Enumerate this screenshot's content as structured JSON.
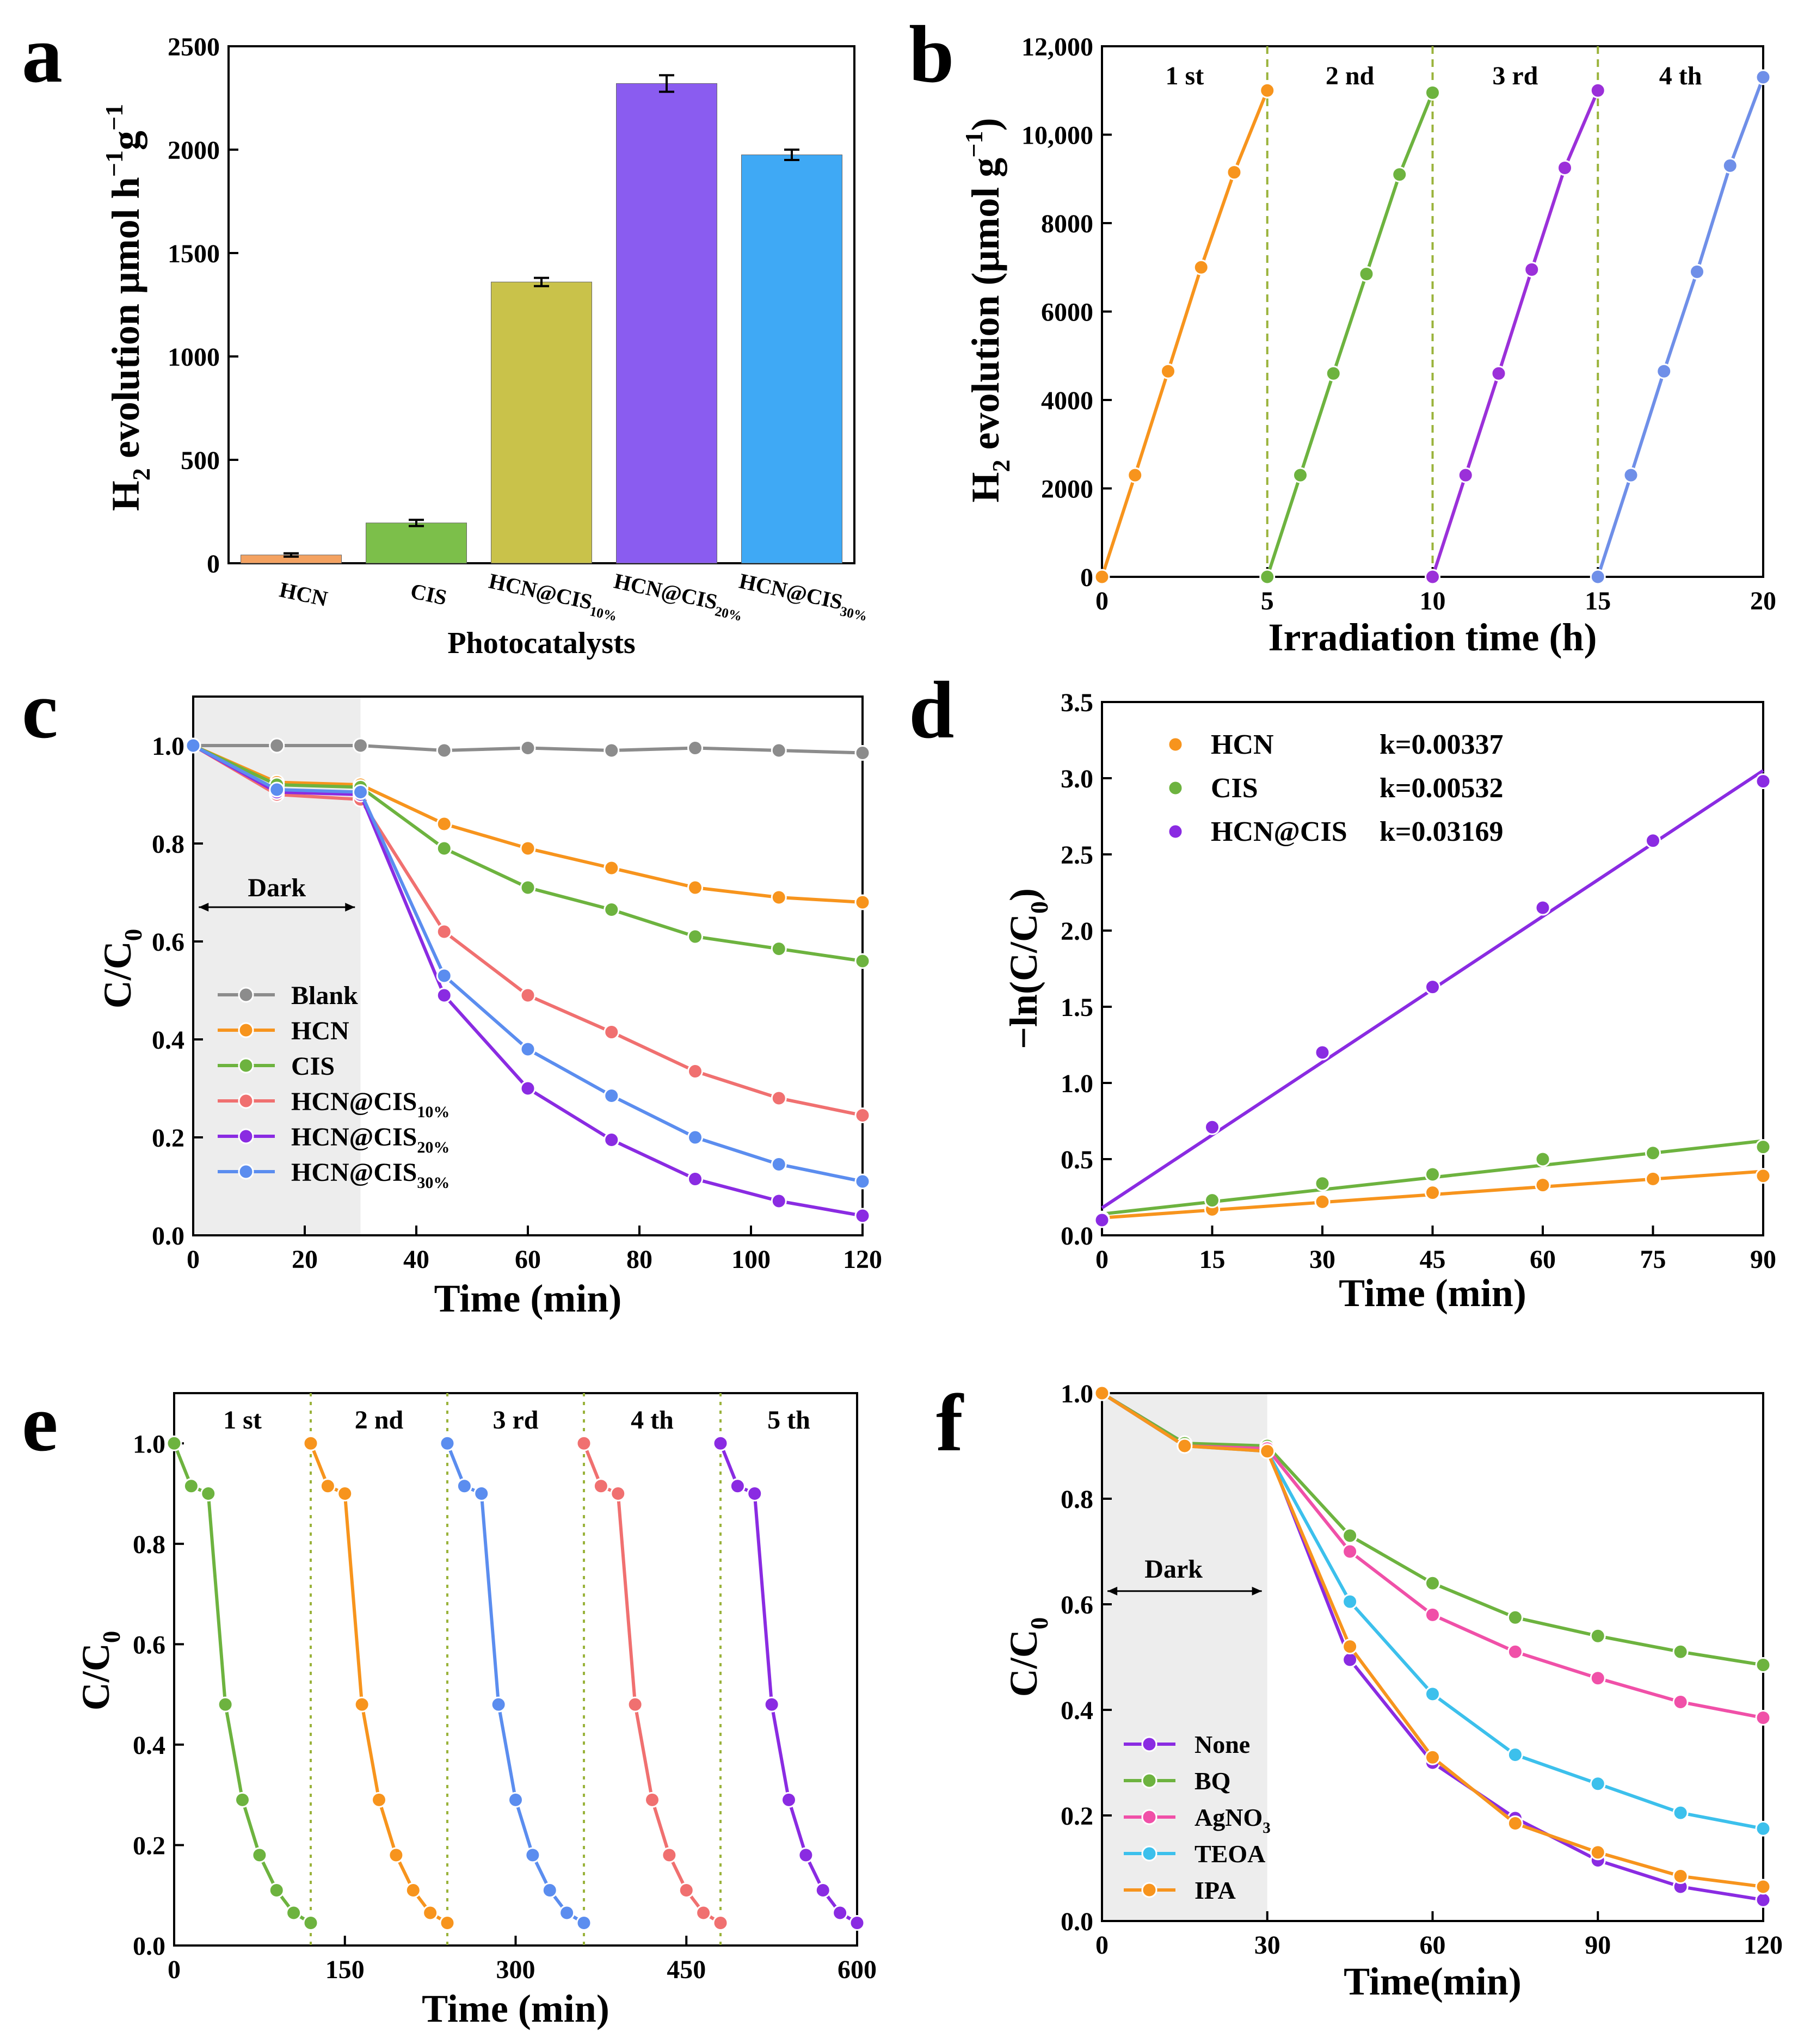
{
  "chart_data": [
    {
      "panel": "a",
      "type": "bar",
      "panel_label": "a",
      "ylabel_main": "H",
      "ylabel_sub": "2",
      "ylabel_rest": " evolution  μmol h",
      "ylabel_sup1": "−1",
      "ylabel_g": "g",
      "ylabel_sup2": "−1",
      "xlabel": "Photocatalysts",
      "ylim": [
        0,
        2500
      ],
      "yticks": [
        0,
        500,
        1000,
        1500,
        2000,
        2500
      ],
      "categories": [
        {
          "base": "HCN",
          "sub": ""
        },
        {
          "base": "CIS",
          "sub": ""
        },
        {
          "base": "HCN@CIS",
          "sub": "10%"
        },
        {
          "base": "HCN@CIS",
          "sub": "20%"
        },
        {
          "base": "HCN@CIS",
          "sub": "30%"
        }
      ],
      "values": [
        40,
        195,
        1360,
        2320,
        1975
      ],
      "errors": [
        8,
        15,
        20,
        40,
        25
      ],
      "colors": [
        "#F4A261",
        "#7CBF4A",
        "#C9C24A",
        "#8A5CF0",
        "#3FA9F5"
      ]
    },
    {
      "panel": "b",
      "type": "line",
      "panel_label": "b",
      "ylabel_main": "H",
      "ylabel_sub": "2",
      "ylabel_rest": " evolution (μmol g",
      "ylabel_sup": "−1",
      "ylabel_end": ")",
      "xlabel": "Irradiation time (h)",
      "xlim": [
        0,
        20
      ],
      "ylim": [
        0,
        12000
      ],
      "xticks": [
        0,
        5,
        10,
        15,
        20
      ],
      "yticks": [
        0,
        2000,
        4000,
        6000,
        8000,
        10000,
        12000
      ],
      "ytick_labels": [
        "0",
        "2000",
        "4000",
        "6000",
        "8000",
        "10,000",
        "12,000"
      ],
      "cycle_labels": [
        "1 st",
        "2 nd",
        "3 rd",
        "4 th"
      ],
      "dividers": [
        5,
        10,
        15
      ],
      "series": [
        {
          "name": "1 st",
          "color": "#F7941D",
          "x": [
            0,
            1,
            2,
            3,
            4,
            5
          ],
          "y": [
            0,
            2300,
            4650,
            7000,
            9150,
            11000
          ]
        },
        {
          "name": "2 nd",
          "color": "#6DB33F",
          "x": [
            5,
            6,
            7,
            8,
            9,
            10
          ],
          "y": [
            0,
            2300,
            4600,
            6850,
            9100,
            10950
          ]
        },
        {
          "name": "3 rd",
          "color": "#9B30D9",
          "x": [
            10,
            11,
            12,
            13,
            14,
            15
          ],
          "y": [
            0,
            2300,
            4600,
            6950,
            9250,
            11000
          ]
        },
        {
          "name": "4 th",
          "color": "#6F8FE8",
          "x": [
            15,
            16,
            17,
            18,
            19,
            20
          ],
          "y": [
            0,
            2300,
            4650,
            6900,
            9300,
            11300
          ]
        }
      ]
    },
    {
      "panel": "c",
      "type": "line",
      "panel_label": "c",
      "ylabel": "C/C",
      "ylabel_sub": "0",
      "xlabel": "Time (min)",
      "xlim": [
        0,
        120
      ],
      "ylim": [
        0,
        1.1
      ],
      "xticks": [
        0,
        20,
        40,
        60,
        80,
        100,
        120
      ],
      "yticks": [
        0.0,
        0.2,
        0.4,
        0.6,
        0.8,
        1.0
      ],
      "ytick_labels": [
        "0.0",
        "0.2",
        "0.4",
        "0.6",
        "0.8",
        "1.0"
      ],
      "dark_label": "Dark",
      "dark_range": [
        0,
        30
      ],
      "x": [
        0,
        15,
        30,
        45,
        60,
        75,
        90,
        105,
        120
      ],
      "series": [
        {
          "name": "Blank",
          "sub": "",
          "color": "#8C8C8C",
          "y": [
            1.0,
            1.0,
            1.0,
            0.99,
            0.995,
            0.99,
            0.995,
            0.99,
            0.985
          ]
        },
        {
          "name": "HCN",
          "sub": "",
          "color": "#F7941D",
          "y": [
            1.0,
            0.925,
            0.92,
            0.84,
            0.79,
            0.75,
            0.71,
            0.69,
            0.68
          ]
        },
        {
          "name": "CIS",
          "sub": "",
          "color": "#6DB33F",
          "y": [
            1.0,
            0.92,
            0.915,
            0.79,
            0.71,
            0.665,
            0.61,
            0.585,
            0.56
          ]
        },
        {
          "name": "HCN@CIS",
          "sub": "10%",
          "color": "#F07070",
          "y": [
            1.0,
            0.9,
            0.89,
            0.62,
            0.49,
            0.415,
            0.335,
            0.28,
            0.245
          ]
        },
        {
          "name": "HCN@CIS",
          "sub": "20%",
          "color": "#8A2BE2",
          "y": [
            1.0,
            0.905,
            0.9,
            0.49,
            0.3,
            0.195,
            0.115,
            0.07,
            0.04
          ]
        },
        {
          "name": "HCN@CIS",
          "sub": "30%",
          "color": "#5B8DEF",
          "y": [
            1.0,
            0.91,
            0.905,
            0.53,
            0.38,
            0.285,
            0.2,
            0.145,
            0.11
          ]
        }
      ]
    },
    {
      "panel": "d",
      "type": "scatter",
      "panel_label": "d",
      "ylabel": "−ln(C/C",
      "ylabel_sub": "0",
      "ylabel_end": ")",
      "xlabel": "Time (min)",
      "xlim": [
        0,
        90
      ],
      "ylim": [
        0,
        3.5
      ],
      "xticks": [
        0,
        15,
        30,
        45,
        60,
        75,
        90
      ],
      "yticks": [
        0.0,
        0.5,
        1.0,
        1.5,
        2.0,
        2.5,
        3.0,
        3.5
      ],
      "ytick_labels": [
        "0.0",
        "0.5",
        "1.0",
        "1.5",
        "2.0",
        "2.5",
        "3.0",
        "3.5"
      ],
      "x": [
        0,
        15,
        30,
        45,
        60,
        75,
        90
      ],
      "series": [
        {
          "name": "HCN",
          "k_label": "k=0.00337",
          "color": "#F7941D",
          "y": [
            0.1,
            0.17,
            0.22,
            0.28,
            0.33,
            0.37,
            0.39
          ],
          "fit": [
            0.115,
            0.42
          ]
        },
        {
          "name": "CIS",
          "k_label": "k=0.00532",
          "color": "#6DB33F",
          "y": [
            0.11,
            0.23,
            0.34,
            0.4,
            0.5,
            0.54,
            0.58
          ],
          "fit": [
            0.14,
            0.62
          ]
        },
        {
          "name": "HCN@CIS",
          "k_label": "k=0.03169",
          "color": "#8A2BE2",
          "y": [
            0.1,
            0.71,
            1.2,
            1.63,
            2.15,
            2.59,
            2.98
          ],
          "fit": [
            0.18,
            3.05
          ]
        }
      ]
    },
    {
      "panel": "e",
      "type": "line",
      "panel_label": "e",
      "ylabel": "C/C",
      "ylabel_sub": "0",
      "xlabel": "Time (min)",
      "xlim": [
        0,
        600
      ],
      "ylim": [
        0,
        1.1
      ],
      "xticks": [
        0,
        150,
        300,
        450,
        600
      ],
      "yticks": [
        0.0,
        0.2,
        0.4,
        0.6,
        0.8,
        1.0
      ],
      "ytick_labels": [
        "0.0",
        "0.2",
        "0.4",
        "0.6",
        "0.8",
        "1.0"
      ],
      "cycle_labels": [
        "1 st",
        "2 nd",
        "3 rd",
        "4 th",
        "5 th"
      ],
      "dividers": [
        120,
        240,
        360,
        480
      ],
      "cycle_y": [
        1.0,
        0.915,
        0.9,
        0.48,
        0.29,
        0.18,
        0.11,
        0.065,
        0.045
      ],
      "cycle_colors": [
        "#6DB33F",
        "#F7941D",
        "#5B8DEF",
        "#F07070",
        "#8A2BE2"
      ]
    },
    {
      "panel": "f",
      "type": "line",
      "panel_label": "f",
      "ylabel": "C/C",
      "ylabel_sub": "0",
      "xlabel": "Time(min)",
      "xlim": [
        0,
        120
      ],
      "ylim": [
        0,
        1.0
      ],
      "xticks": [
        0,
        30,
        60,
        90,
        120
      ],
      "yticks": [
        0.0,
        0.2,
        0.4,
        0.6,
        0.8,
        1.0
      ],
      "ytick_labels": [
        "0.0",
        "0.2",
        "0.4",
        "0.6",
        "0.8",
        "1.0"
      ],
      "dark_label": "Dark",
      "dark_range": [
        0,
        30
      ],
      "x": [
        0,
        15,
        30,
        45,
        60,
        75,
        90,
        105,
        120
      ],
      "series": [
        {
          "name": "None",
          "sub": "",
          "color": "#8A2BE2",
          "y": [
            1.0,
            0.905,
            0.895,
            0.495,
            0.3,
            0.195,
            0.115,
            0.065,
            0.04
          ]
        },
        {
          "name": "BQ",
          "sub": "",
          "color": "#6DB33F",
          "y": [
            1.0,
            0.905,
            0.9,
            0.73,
            0.64,
            0.575,
            0.54,
            0.51,
            0.485
          ]
        },
        {
          "name": "AgNO",
          "sub": "3",
          "color": "#F050A8",
          "y": [
            1.0,
            0.9,
            0.895,
            0.7,
            0.58,
            0.51,
            0.46,
            0.415,
            0.385
          ]
        },
        {
          "name": "TEOA",
          "sub": "",
          "color": "#3CC0EC",
          "y": [
            1.0,
            0.9,
            0.89,
            0.605,
            0.43,
            0.315,
            0.26,
            0.205,
            0.175
          ]
        },
        {
          "name": "IPA",
          "sub": "",
          "color": "#F7941D",
          "y": [
            1.0,
            0.9,
            0.89,
            0.52,
            0.31,
            0.185,
            0.13,
            0.085,
            0.065
          ]
        }
      ]
    }
  ]
}
